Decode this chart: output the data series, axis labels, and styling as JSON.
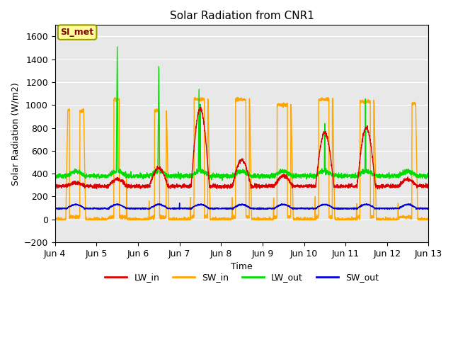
{
  "title": "Solar Radiation from CNR1",
  "xlabel": "Time",
  "ylabel": "Solar Radiation (W/m2)",
  "xlim_days": [
    0,
    9
  ],
  "ylim": [
    -200,
    1700
  ],
  "yticks": [
    -200,
    0,
    200,
    400,
    600,
    800,
    1000,
    1200,
    1400,
    1600
  ],
  "xtick_labels": [
    "Jun 4",
    "Jun 5",
    "Jun 6",
    "Jun 7",
    "Jun 8",
    "Jun 9",
    "Jun 10",
    "Jun 11",
    "Jun 12",
    "Jun 13"
  ],
  "xtick_positions": [
    0,
    1,
    2,
    3,
    4,
    5,
    6,
    7,
    8,
    9
  ],
  "colors": {
    "LW_in": "#dd0000",
    "SW_in": "#ffa500",
    "LW_out": "#00dd00",
    "SW_out": "#0000dd"
  },
  "annotation_text": "SI_met",
  "annotation_bbox": {
    "facecolor": "#ffff99",
    "edgecolor": "#999900",
    "linewidth": 1.5
  },
  "plot_bg": "#e8e8e8",
  "fig_bg": "#ffffff",
  "linewidth": 1.0,
  "pts_per_day": 288,
  "n_days": 9
}
